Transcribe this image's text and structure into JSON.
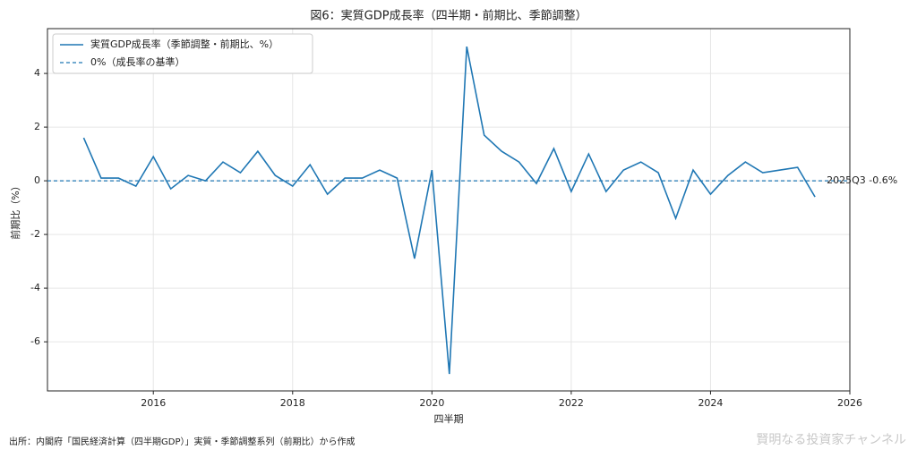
{
  "chart_data": {
    "type": "line",
    "title": "図6：実質GDP成長率（四半期・前期比、季節調整）",
    "x_label": "四半期",
    "y_label": "前期比（%）",
    "x": [
      2015.0,
      2015.25,
      2015.5,
      2015.75,
      2016.0,
      2016.25,
      2016.5,
      2016.75,
      2017.0,
      2017.25,
      2017.5,
      2017.75,
      2018.0,
      2018.25,
      2018.5,
      2018.75,
      2019.0,
      2019.25,
      2019.5,
      2019.75,
      2020.0,
      2020.25,
      2020.5,
      2020.75,
      2021.0,
      2021.25,
      2021.5,
      2021.75,
      2022.0,
      2022.25,
      2022.5,
      2022.75,
      2023.0,
      2023.25,
      2023.5,
      2023.75,
      2024.0,
      2024.25,
      2024.5,
      2024.75,
      2025.0,
      2025.25,
      2025.5
    ],
    "series": [
      {
        "name": "実質GDP成長率（季節調整・前期比、%）",
        "color": "#1f77b4",
        "values": [
          1.6,
          0.1,
          0.1,
          -0.2,
          0.9,
          -0.3,
          0.2,
          0.0,
          0.7,
          0.3,
          1.1,
          0.2,
          -0.2,
          0.6,
          -0.5,
          0.1,
          0.1,
          0.4,
          0.1,
          -2.9,
          0.4,
          -7.2,
          5.0,
          1.7,
          1.1,
          0.7,
          -0.1,
          1.2,
          -0.4,
          1.0,
          -0.4,
          0.4,
          0.7,
          0.3,
          -1.4,
          0.4,
          -0.5,
          0.2,
          0.7,
          0.3,
          0.4,
          0.5,
          -0.6
        ]
      }
    ],
    "reference_line": {
      "name": "0%（成長率の基準）",
      "value": 0,
      "color": "#1f77b4",
      "style": "dashed"
    },
    "annotation": "2025Q3 -0.6%",
    "xlim": [
      2014.48,
      2026.0
    ],
    "xticks": [
      2016,
      2018,
      2020,
      2022,
      2024,
      2026
    ],
    "ylim": [
      -7.83,
      5.67
    ],
    "yticks": [
      -6,
      -4,
      -2,
      0,
      2,
      4
    ],
    "grid": true,
    "legend": "upper left",
    "source": "出所：内閣府「国民経済計算（四半期GDP）」実質・季節調整系列（前期比）から作成",
    "watermark": "賢明なる投資家チャンネル"
  }
}
